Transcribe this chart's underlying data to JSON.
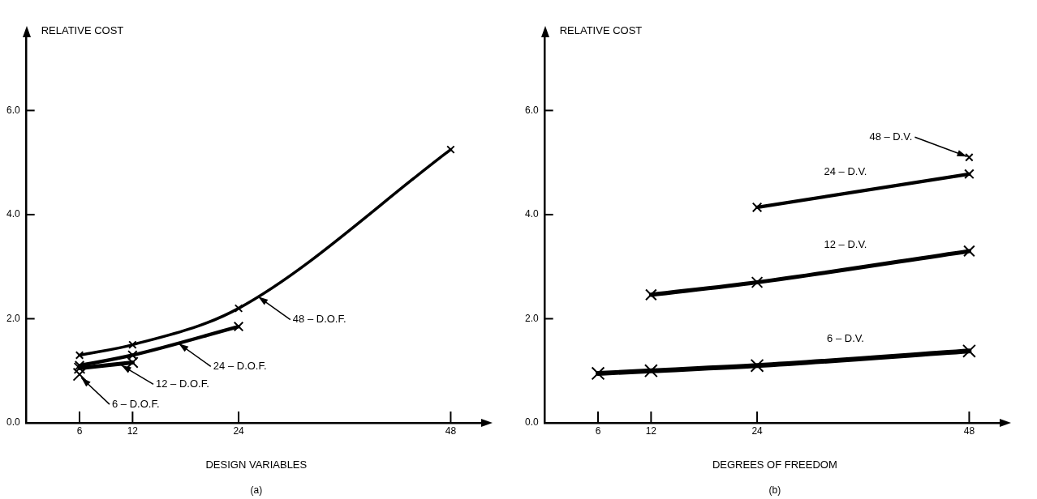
{
  "chart_data": [
    {
      "type": "line",
      "xlabel": "DESIGN VARIABLES",
      "ylabel": "RELATIVE COST",
      "marker": "cross",
      "xlim": [
        0,
        52
      ],
      "ylim": [
        0,
        7.5
      ],
      "xticks": [
        6,
        12,
        24,
        48
      ],
      "yticks": [
        {
          "value": 0,
          "label": "0.0"
        },
        {
          "value": 2,
          "label": "2.0"
        },
        {
          "value": 4,
          "label": "4.0"
        },
        {
          "value": 6,
          "label": "6.0"
        }
      ],
      "series": [
        {
          "color": "#000000",
          "x": [
            6,
            12,
            24,
            48
          ],
          "values": [
            1.3,
            1.5,
            2.2,
            5.25
          ]
        },
        {
          "color": "#000000",
          "x": [
            6,
            12,
            24
          ],
          "values": [
            1.1,
            1.3,
            1.85
          ]
        },
        {
          "color": "#000000",
          "x": [
            6,
            12
          ],
          "values": [
            1.05,
            1.16
          ]
        },
        {
          "color": "#000000",
          "x": [
            6
          ],
          "values": [
            0.93
          ]
        }
      ],
      "annotations": [
        {
          "text": "48 – D.O.F.",
          "x": 26,
          "y": 2.45
        },
        {
          "text": "24 – D.O.F.",
          "x": 17,
          "y": 1.55
        },
        {
          "text": "12 – D.O.F.",
          "x": 10.5,
          "y": 1.13
        },
        {
          "text": "6 – D.O.F.",
          "x": 6,
          "y": 0.9
        },
        "(a)"
      ]
    },
    {
      "type": "line",
      "xlabel": "DEGREES OF FREEDOM",
      "ylabel": "RELATIVE COST",
      "marker": "cross",
      "xlim": [
        0,
        52
      ],
      "ylim": [
        0,
        7.5
      ],
      "xticks": [
        6,
        12,
        24,
        48
      ],
      "yticks": [
        {
          "value": 0,
          "label": "0.0"
        },
        {
          "value": 2,
          "label": "2.0"
        },
        {
          "value": 4,
          "label": "4.0"
        },
        {
          "value": 6,
          "label": "6.0"
        }
      ],
      "series": [
        {
          "color": "#000000",
          "x": [
            48
          ],
          "values": [
            5.1
          ]
        },
        {
          "color": "#000000",
          "x": [
            24,
            48
          ],
          "values": [
            4.14,
            4.78
          ]
        },
        {
          "color": "#000000",
          "x": [
            12,
            24,
            48
          ],
          "values": [
            2.46,
            2.7,
            3.3
          ]
        },
        {
          "color": "#000000",
          "x": [
            6,
            12,
            24,
            48
          ],
          "values": [
            0.95,
            1.0,
            1.1,
            1.38
          ]
        }
      ],
      "annotations": [
        {
          "text": "48 – D.V.",
          "x": 48,
          "y": 5.1
        },
        {
          "text": "24 – D.V.",
          "x": 34,
          "y": 4.35
        },
        {
          "text": "12 – D.V.",
          "x": 34,
          "y": 2.95
        },
        {
          "text": "6 – D.V.",
          "x": 34,
          "y": 1.15
        },
        "(b)"
      ]
    }
  ]
}
